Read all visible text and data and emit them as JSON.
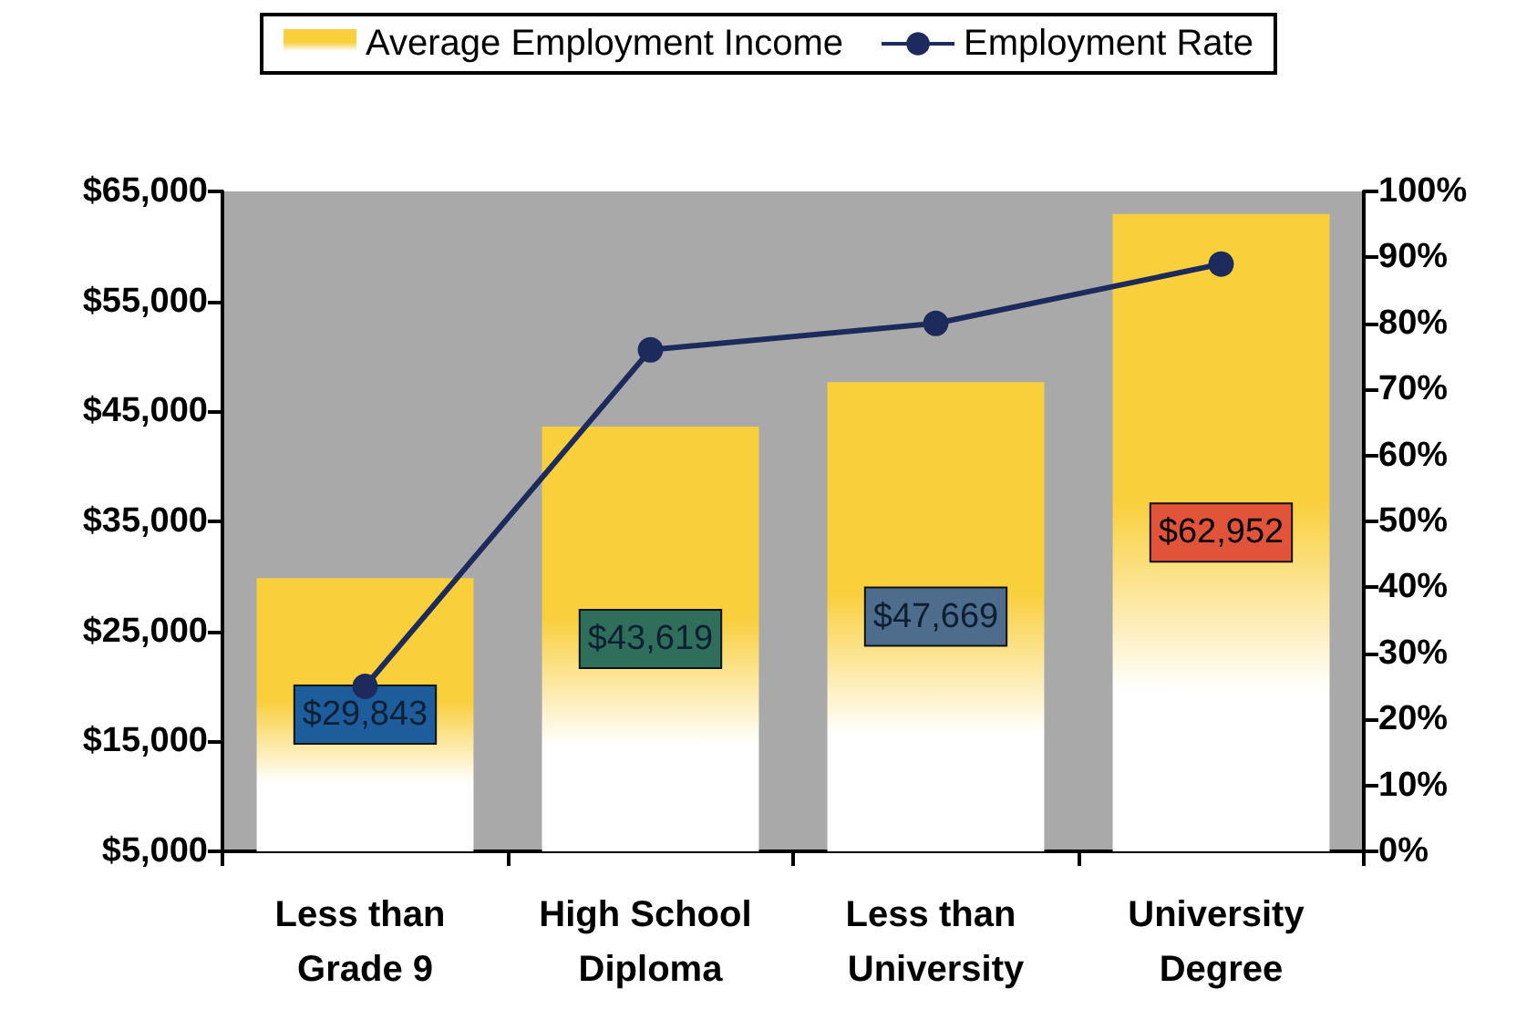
{
  "chart_data": {
    "type": "bar",
    "categories": [
      "Less than Grade 9",
      "High School Diploma",
      "Less than University",
      "University Degree"
    ],
    "series": [
      {
        "name": "Average Employment Income",
        "color": "#f9cf3c",
        "values": [
          29843,
          43619,
          47669,
          62952
        ],
        "value_labels": [
          "$29,843",
          "$43,619",
          "$47,669",
          "$62,952"
        ]
      },
      {
        "name": "Employment Rate",
        "type": "line",
        "axis": "y2",
        "color": "#1c2b5c",
        "values": [
          25,
          76,
          80,
          89
        ]
      }
    ],
    "legend": "top",
    "marker": "circle",
    "grid": false,
    "ylim": [
      5000,
      65000
    ],
    "yticks": [
      {
        "value": 5000,
        "label": "$5,000"
      },
      {
        "value": 15000,
        "label": "$15,000"
      },
      {
        "value": 25000,
        "label": "$25,000"
      },
      {
        "value": 35000,
        "label": "$35,000"
      },
      {
        "value": 45000,
        "label": "$45,000"
      },
      {
        "value": 55000,
        "label": "$55,000"
      },
      {
        "value": 65000,
        "label": "$65,000"
      }
    ],
    "y2lim": [
      0,
      100
    ],
    "y2ticks": [
      {
        "value": 0,
        "label": "0%"
      },
      {
        "value": 10,
        "label": "10%"
      },
      {
        "value": 20,
        "label": "20%"
      },
      {
        "value": 30,
        "label": "30%"
      },
      {
        "value": 40,
        "label": "40%"
      },
      {
        "value": 50,
        "label": "50%"
      },
      {
        "value": 60,
        "label": "60%"
      },
      {
        "value": 70,
        "label": "70%"
      },
      {
        "value": 80,
        "label": "80%"
      },
      {
        "value": 90,
        "label": "90%"
      },
      {
        "value": 100,
        "label": "100%"
      }
    ]
  }
}
